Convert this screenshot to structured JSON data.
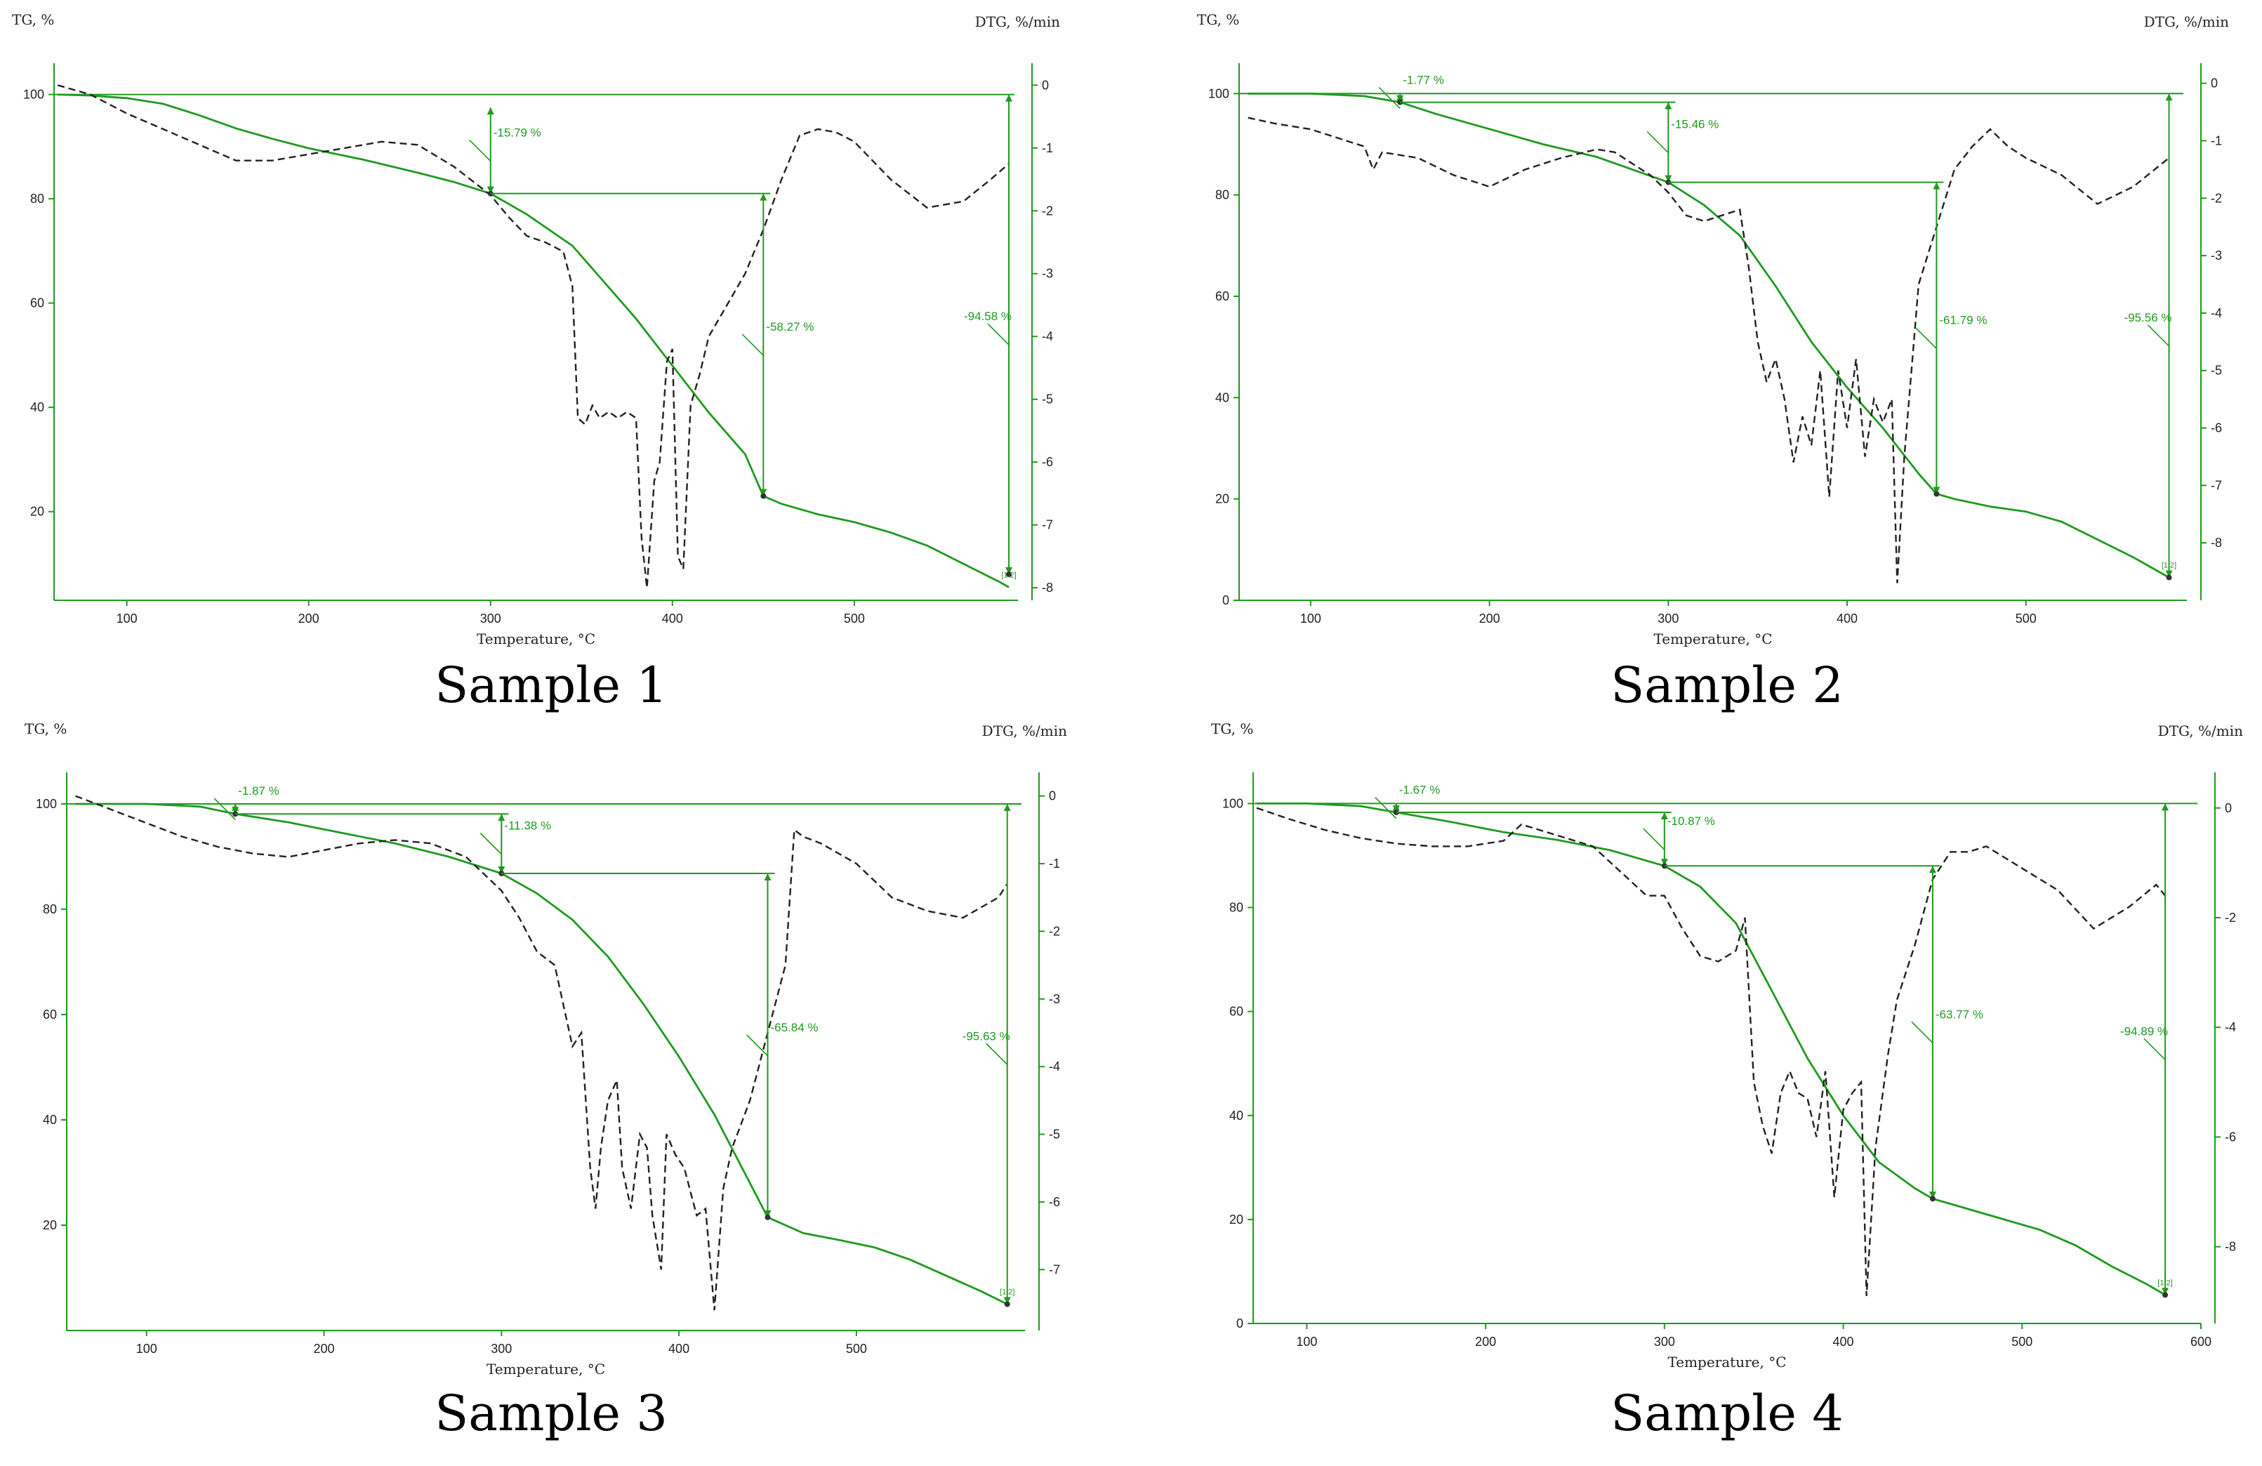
{
  "colors": {
    "tg": "#1f9a1f",
    "dtg": "#222222",
    "axis": "#1f9a1f",
    "text": "#222222"
  },
  "chart_data": [
    {
      "type": "line",
      "caption": "Sample 1",
      "xlabel": "Temperature, °C",
      "ylabel": "TG, %",
      "y2label": "DTG, %/min",
      "xlim": [
        60,
        590
      ],
      "ylim": [
        3,
        106
      ],
      "y2lim": [
        -8.2,
        0.35
      ],
      "xticks": [
        100,
        200,
        300,
        400,
        500
      ],
      "yticks": [
        20,
        40,
        60,
        80,
        100
      ],
      "y2ticks": [
        0,
        -1,
        -2,
        -3,
        -4,
        -5,
        -6,
        -7,
        -8
      ],
      "series": [
        {
          "axis": "left",
          "style": "solid",
          "x": [
            62,
            80,
            100,
            120,
            140,
            160,
            180,
            200,
            230,
            260,
            280,
            300,
            320,
            345,
            360,
            380,
            400,
            420,
            440,
            450,
            460,
            480,
            500,
            520,
            540,
            560,
            580,
            585
          ],
          "y": [
            100,
            99.8,
            99.3,
            98.2,
            96,
            93.5,
            91.5,
            89.7,
            87.5,
            85,
            83.2,
            81,
            77,
            71,
            65,
            57,
            48,
            39,
            31,
            23,
            21.5,
            19.5,
            18,
            16,
            13.5,
            10,
            6.5,
            5.5
          ]
        },
        {
          "axis": "right",
          "style": "dashed",
          "x": [
            62,
            80,
            100,
            120,
            140,
            160,
            180,
            200,
            220,
            240,
            260,
            280,
            300,
            310,
            320,
            330,
            340,
            345,
            348,
            352,
            356,
            360,
            365,
            370,
            375,
            380,
            383,
            386,
            390,
            393,
            397,
            400,
            403,
            406,
            410,
            415,
            420,
            430,
            440,
            450,
            460,
            470,
            480,
            490,
            500,
            520,
            540,
            560,
            575,
            585
          ],
          "y": [
            0,
            -0.15,
            -0.45,
            -0.7,
            -0.95,
            -1.2,
            -1.2,
            -1.1,
            -1,
            -0.9,
            -0.95,
            -1.3,
            -1.75,
            -2.1,
            -2.4,
            -2.5,
            -2.65,
            -3.2,
            -5.3,
            -5.4,
            -5.1,
            -5.3,
            -5.2,
            -5.3,
            -5.2,
            -5.3,
            -7.2,
            -8,
            -6.3,
            -6,
            -4.4,
            -4.2,
            -7.5,
            -7.7,
            -5.1,
            -4.6,
            -4,
            -3.5,
            -3,
            -2.3,
            -1.5,
            -0.8,
            -0.7,
            -0.75,
            -0.9,
            -1.5,
            -1.95,
            -1.85,
            -1.5,
            -1.25
          ]
        }
      ],
      "annotations": [
        {
          "label": "-15.79 %",
          "x": 300,
          "from": 97.5,
          "to": 81
        },
        {
          "label": "-58.27 %",
          "x": 450,
          "from": 81,
          "to": 23
        },
        {
          "label": "-94.58 %",
          "x": 585,
          "from": 100,
          "to": 8
        }
      ],
      "end_label": "[1.2]"
    },
    {
      "type": "line",
      "caption": "Sample 2",
      "xlabel": "Temperature, °C",
      "ylabel": "TG, %",
      "y2label": "DTG, %/min",
      "xlim": [
        60,
        590
      ],
      "ylim": [
        0,
        106
      ],
      "y2lim": [
        -9,
        0.35
      ],
      "xticks": [
        100,
        200,
        300,
        400,
        500
      ],
      "yticks": [
        0,
        20,
        40,
        60,
        80,
        100
      ],
      "y2ticks": [
        0,
        -1,
        -2,
        -3,
        -4,
        -5,
        -6,
        -7,
        -8
      ],
      "series": [
        {
          "axis": "left",
          "style": "solid",
          "x": [
            65,
            100,
            130,
            150,
            170,
            200,
            230,
            260,
            280,
            300,
            320,
            340,
            360,
            380,
            400,
            420,
            440,
            450,
            460,
            480,
            500,
            520,
            540,
            560,
            580
          ],
          "y": [
            100,
            100,
            99.5,
            98.3,
            96,
            93,
            90,
            87.5,
            85,
            82.5,
            78,
            72,
            62,
            51,
            42,
            34,
            25,
            21,
            20,
            18.5,
            17.5,
            15.5,
            12,
            8.5,
            4.5
          ]
        },
        {
          "axis": "right",
          "style": "dashed",
          "x": [
            65,
            80,
            100,
            120,
            130,
            135,
            140,
            160,
            180,
            200,
            220,
            240,
            260,
            270,
            280,
            290,
            300,
            310,
            320,
            330,
            340,
            345,
            350,
            355,
            360,
            365,
            370,
            375,
            380,
            385,
            390,
            395,
            400,
            405,
            410,
            415,
            420,
            425,
            428,
            432,
            440,
            450,
            460,
            470,
            480,
            490,
            500,
            520,
            540,
            560,
            580
          ],
          "y": [
            -0.6,
            -0.7,
            -0.8,
            -1.0,
            -1.1,
            -1.5,
            -1.2,
            -1.3,
            -1.6,
            -1.8,
            -1.5,
            -1.3,
            -1.15,
            -1.2,
            -1.4,
            -1.6,
            -1.9,
            -2.3,
            -2.4,
            -2.3,
            -2.2,
            -3.2,
            -4.5,
            -5.2,
            -4.8,
            -5.5,
            -6.6,
            -5.8,
            -6.3,
            -5,
            -7.2,
            -5,
            -6,
            -4.8,
            -6.5,
            -5.5,
            -5.9,
            -5.5,
            -8.7,
            -6.5,
            -3.5,
            -2.5,
            -1.5,
            -1.1,
            -0.8,
            -1.1,
            -1.3,
            -1.6,
            -2.1,
            -1.8,
            -1.3
          ]
        }
      ],
      "annotations": [
        {
          "label": "-1.77 %",
          "x": 150,
          "from": 100,
          "to": 98.3
        },
        {
          "label": "-15.46 %",
          "x": 300,
          "from": 98.3,
          "to": 82.5
        },
        {
          "label": "-61.79 %",
          "x": 450,
          "from": 82.5,
          "to": 21
        },
        {
          "label": "-95.56 %",
          "x": 580,
          "from": 100,
          "to": 4.5
        }
      ],
      "end_label": "[1.2]"
    },
    {
      "type": "line",
      "caption": "Sample 3",
      "xlabel": "Temperature, °C",
      "ylabel": "TG, %",
      "y2label": "DTG, %/min",
      "xlim": [
        55,
        595
      ],
      "ylim": [
        0,
        106
      ],
      "y2lim": [
        -7.9,
        0.35
      ],
      "xticks": [
        100,
        200,
        300,
        400,
        500
      ],
      "yticks": [
        20,
        40,
        60,
        80,
        100
      ],
      "y2ticks": [
        0,
        -1,
        -2,
        -3,
        -4,
        -5,
        -6,
        -7
      ],
      "series": [
        {
          "axis": "left",
          "style": "solid",
          "x": [
            60,
            100,
            130,
            150,
            180,
            210,
            240,
            270,
            300,
            320,
            340,
            360,
            380,
            400,
            420,
            440,
            450,
            470,
            490,
            510,
            530,
            550,
            570,
            585
          ],
          "y": [
            100,
            100,
            99.5,
            98.1,
            96.5,
            94.5,
            92.5,
            90,
            86.8,
            83,
            78,
            71,
            62,
            52,
            41,
            28,
            21.5,
            18.5,
            17.2,
            15.8,
            13.5,
            10.5,
            7.5,
            5
          ]
        },
        {
          "axis": "right",
          "style": "dashed",
          "x": [
            60,
            80,
            100,
            120,
            140,
            160,
            180,
            200,
            220,
            240,
            260,
            280,
            300,
            310,
            320,
            330,
            340,
            345,
            350,
            353,
            356,
            360,
            365,
            368,
            373,
            378,
            382,
            385,
            390,
            393,
            398,
            403,
            410,
            415,
            420,
            425,
            430,
            440,
            450,
            460,
            465,
            470,
            480,
            500,
            520,
            540,
            560,
            580,
            585
          ],
          "y": [
            0,
            -0.2,
            -0.4,
            -0.6,
            -0.75,
            -0.85,
            -0.9,
            -0.8,
            -0.7,
            -0.65,
            -0.7,
            -0.9,
            -1.4,
            -1.8,
            -2.3,
            -2.5,
            -3.7,
            -3.5,
            -5.5,
            -6.1,
            -5.2,
            -4.5,
            -4.2,
            -5.5,
            -6.1,
            -5,
            -5.2,
            -6.2,
            -7.0,
            -5,
            -5.3,
            -5.5,
            -6.2,
            -6.1,
            -7.6,
            -5.8,
            -5.2,
            -4.5,
            -3.5,
            -2.5,
            -0.5,
            -0.6,
            -0.7,
            -1.0,
            -1.5,
            -1.7,
            -1.8,
            -1.5,
            -1.3
          ]
        }
      ],
      "annotations": [
        {
          "label": "-1.87 %",
          "x": 150,
          "from": 100,
          "to": 98.1
        },
        {
          "label": "-11.38 %",
          "x": 300,
          "from": 98.1,
          "to": 86.8
        },
        {
          "label": "-65.84 %",
          "x": 450,
          "from": 86.8,
          "to": 21.5
        },
        {
          "label": "-95.63 %",
          "x": 585,
          "from": 100,
          "to": 5
        }
      ],
      "end_label": "[1.2]"
    },
    {
      "type": "line",
      "caption": "Sample 4",
      "xlabel": "Temperature, °C",
      "ylabel": "TG, %",
      "y2label": "DTG, %/min",
      "xlim": [
        70,
        600
      ],
      "ylim": [
        0,
        106
      ],
      "y2lim": [
        -9.4,
        0.65
      ],
      "xticks": [
        100,
        200,
        300,
        400,
        500,
        600
      ],
      "yticks": [
        0,
        20,
        40,
        60,
        80,
        100
      ],
      "y2ticks": [
        0,
        -2,
        -4,
        -6,
        -8
      ],
      "series": [
        {
          "axis": "left",
          "style": "solid",
          "x": [
            72,
            100,
            130,
            150,
            180,
            210,
            240,
            270,
            300,
            320,
            340,
            360,
            380,
            400,
            420,
            440,
            450,
            470,
            490,
            510,
            530,
            550,
            570,
            580
          ],
          "y": [
            100,
            100,
            99.5,
            98.3,
            96.5,
            94.5,
            93,
            91,
            88,
            84,
            77,
            64,
            51,
            40,
            31,
            26,
            24,
            22,
            20,
            18,
            15,
            11,
            7.5,
            5.5
          ]
        },
        {
          "axis": "right",
          "style": "dashed",
          "x": [
            72,
            90,
            110,
            130,
            150,
            170,
            190,
            210,
            220,
            240,
            260,
            280,
            290,
            300,
            310,
            320,
            330,
            340,
            345,
            350,
            355,
            360,
            365,
            370,
            375,
            380,
            385,
            390,
            395,
            400,
            405,
            410,
            413,
            418,
            425,
            430,
            440,
            450,
            460,
            470,
            480,
            490,
            500,
            520,
            540,
            560,
            575,
            580
          ],
          "y": [
            0,
            -0.2,
            -0.4,
            -0.55,
            -0.65,
            -0.7,
            -0.7,
            -0.6,
            -0.3,
            -0.5,
            -0.7,
            -1.3,
            -1.6,
            -1.6,
            -2.2,
            -2.7,
            -2.8,
            -2.6,
            -2.0,
            -5.0,
            -5.8,
            -6.3,
            -5.2,
            -4.8,
            -5.2,
            -5.3,
            -6.0,
            -4.8,
            -7.1,
            -5.5,
            -5.2,
            -5.0,
            -8.9,
            -6.2,
            -4.5,
            -3.5,
            -2.5,
            -1.3,
            -0.8,
            -0.8,
            -0.7,
            -0.9,
            -1.1,
            -1.5,
            -2.2,
            -1.8,
            -1.4,
            -1.6
          ]
        }
      ],
      "annotations": [
        {
          "label": "-1.67 %",
          "x": 150,
          "from": 100,
          "to": 98.3
        },
        {
          "label": "-10.87 %",
          "x": 300,
          "from": 98.3,
          "to": 88
        },
        {
          "label": "-63.77 %",
          "x": 450,
          "from": 88,
          "to": 24
        },
        {
          "label": "-94.89 %",
          "x": 580,
          "from": 100,
          "to": 5.5
        }
      ],
      "end_label": "[1.2]"
    }
  ]
}
